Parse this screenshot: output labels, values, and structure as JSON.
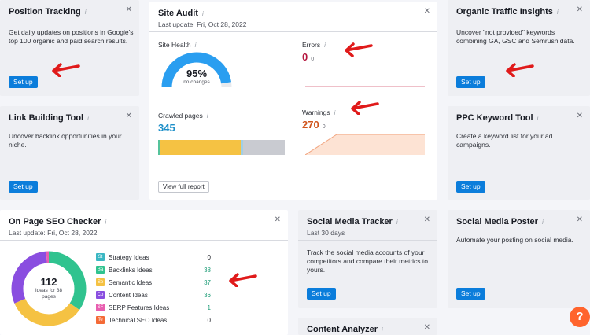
{
  "position_tracking": {
    "title": "Position Tracking",
    "description": "Get daily updates on positions in Google's top 100 organic and paid search results.",
    "button": "Set up"
  },
  "site_audit": {
    "title": "Site Audit",
    "last_update": "Last update: Fri, Oct 28, 2022",
    "site_health_label": "Site Health",
    "site_health_value": "95%",
    "site_health_sub": "no changes",
    "site_health_fraction": 0.95,
    "errors_label": "Errors",
    "errors_value": "0",
    "errors_change": "0",
    "crawled_label": "Crawled pages",
    "crawled_value": "345",
    "warnings_label": "Warnings",
    "warnings_value": "270",
    "warnings_change": "0",
    "button": "View full report"
  },
  "organic_traffic": {
    "title": "Organic Traffic Insights",
    "description": "Uncover \"not provided\" keywords combining GA, GSC and Semrush data.",
    "button": "Set up"
  },
  "link_building": {
    "title": "Link Building Tool",
    "description": "Uncover backlink opportunities in your niche.",
    "button": "Set up"
  },
  "ppc_keyword": {
    "title": "PPC Keyword Tool",
    "description": "Create a keyword list for your ad campaigns.",
    "button": "Set up"
  },
  "on_page_seo": {
    "title": "On Page SEO Checker",
    "last_update": "Last update: Fri, Oct 28, 2022",
    "total": "112",
    "total_sub": "Ideas for 38 pages",
    "ideas": [
      {
        "badge": "St",
        "name": "Strategy Ideas",
        "value": "0",
        "color": "#3ab7c3",
        "value_color": "#171a22"
      },
      {
        "badge": "Ba",
        "name": "Backlinks Ideas",
        "value": "38",
        "color": "#30c38f",
        "value_color": "#1c9c76"
      },
      {
        "badge": "Se",
        "name": "Semantic Ideas",
        "value": "37",
        "color": "#f5c243",
        "value_color": "#1c9c76"
      },
      {
        "badge": "Co",
        "name": "Content Ideas",
        "value": "36",
        "color": "#8a4ee0",
        "value_color": "#1c9c76"
      },
      {
        "badge": "SF",
        "name": "SERP Features Ideas",
        "value": "1",
        "color": "#e85fb0",
        "value_color": "#1c9c76"
      },
      {
        "badge": "Te",
        "name": "Technical SEO Ideas",
        "value": "0",
        "color": "#f46a36",
        "value_color": "#171a22"
      }
    ]
  },
  "social_tracker": {
    "title": "Social Media Tracker",
    "last_update": "Last 30 days",
    "description": "Track the social media accounts of your competitors and compare their metrics to yours.",
    "button": "Set up"
  },
  "social_poster": {
    "title": "Social Media Poster",
    "description": "Automate your posting on social media.",
    "button": "Set up"
  },
  "content_analyzer": {
    "title": "Content Analyzer"
  },
  "help": {
    "label": "?"
  },
  "icons": {
    "info": "info-icon",
    "close": "close-icon",
    "arrow": "red-arrow-icon"
  },
  "colors": {
    "accent": "#0b7ddb",
    "arrow": "#e01a1a",
    "error": "#b5173f",
    "warning": "#d0551d",
    "health": "#2a9ef0"
  }
}
